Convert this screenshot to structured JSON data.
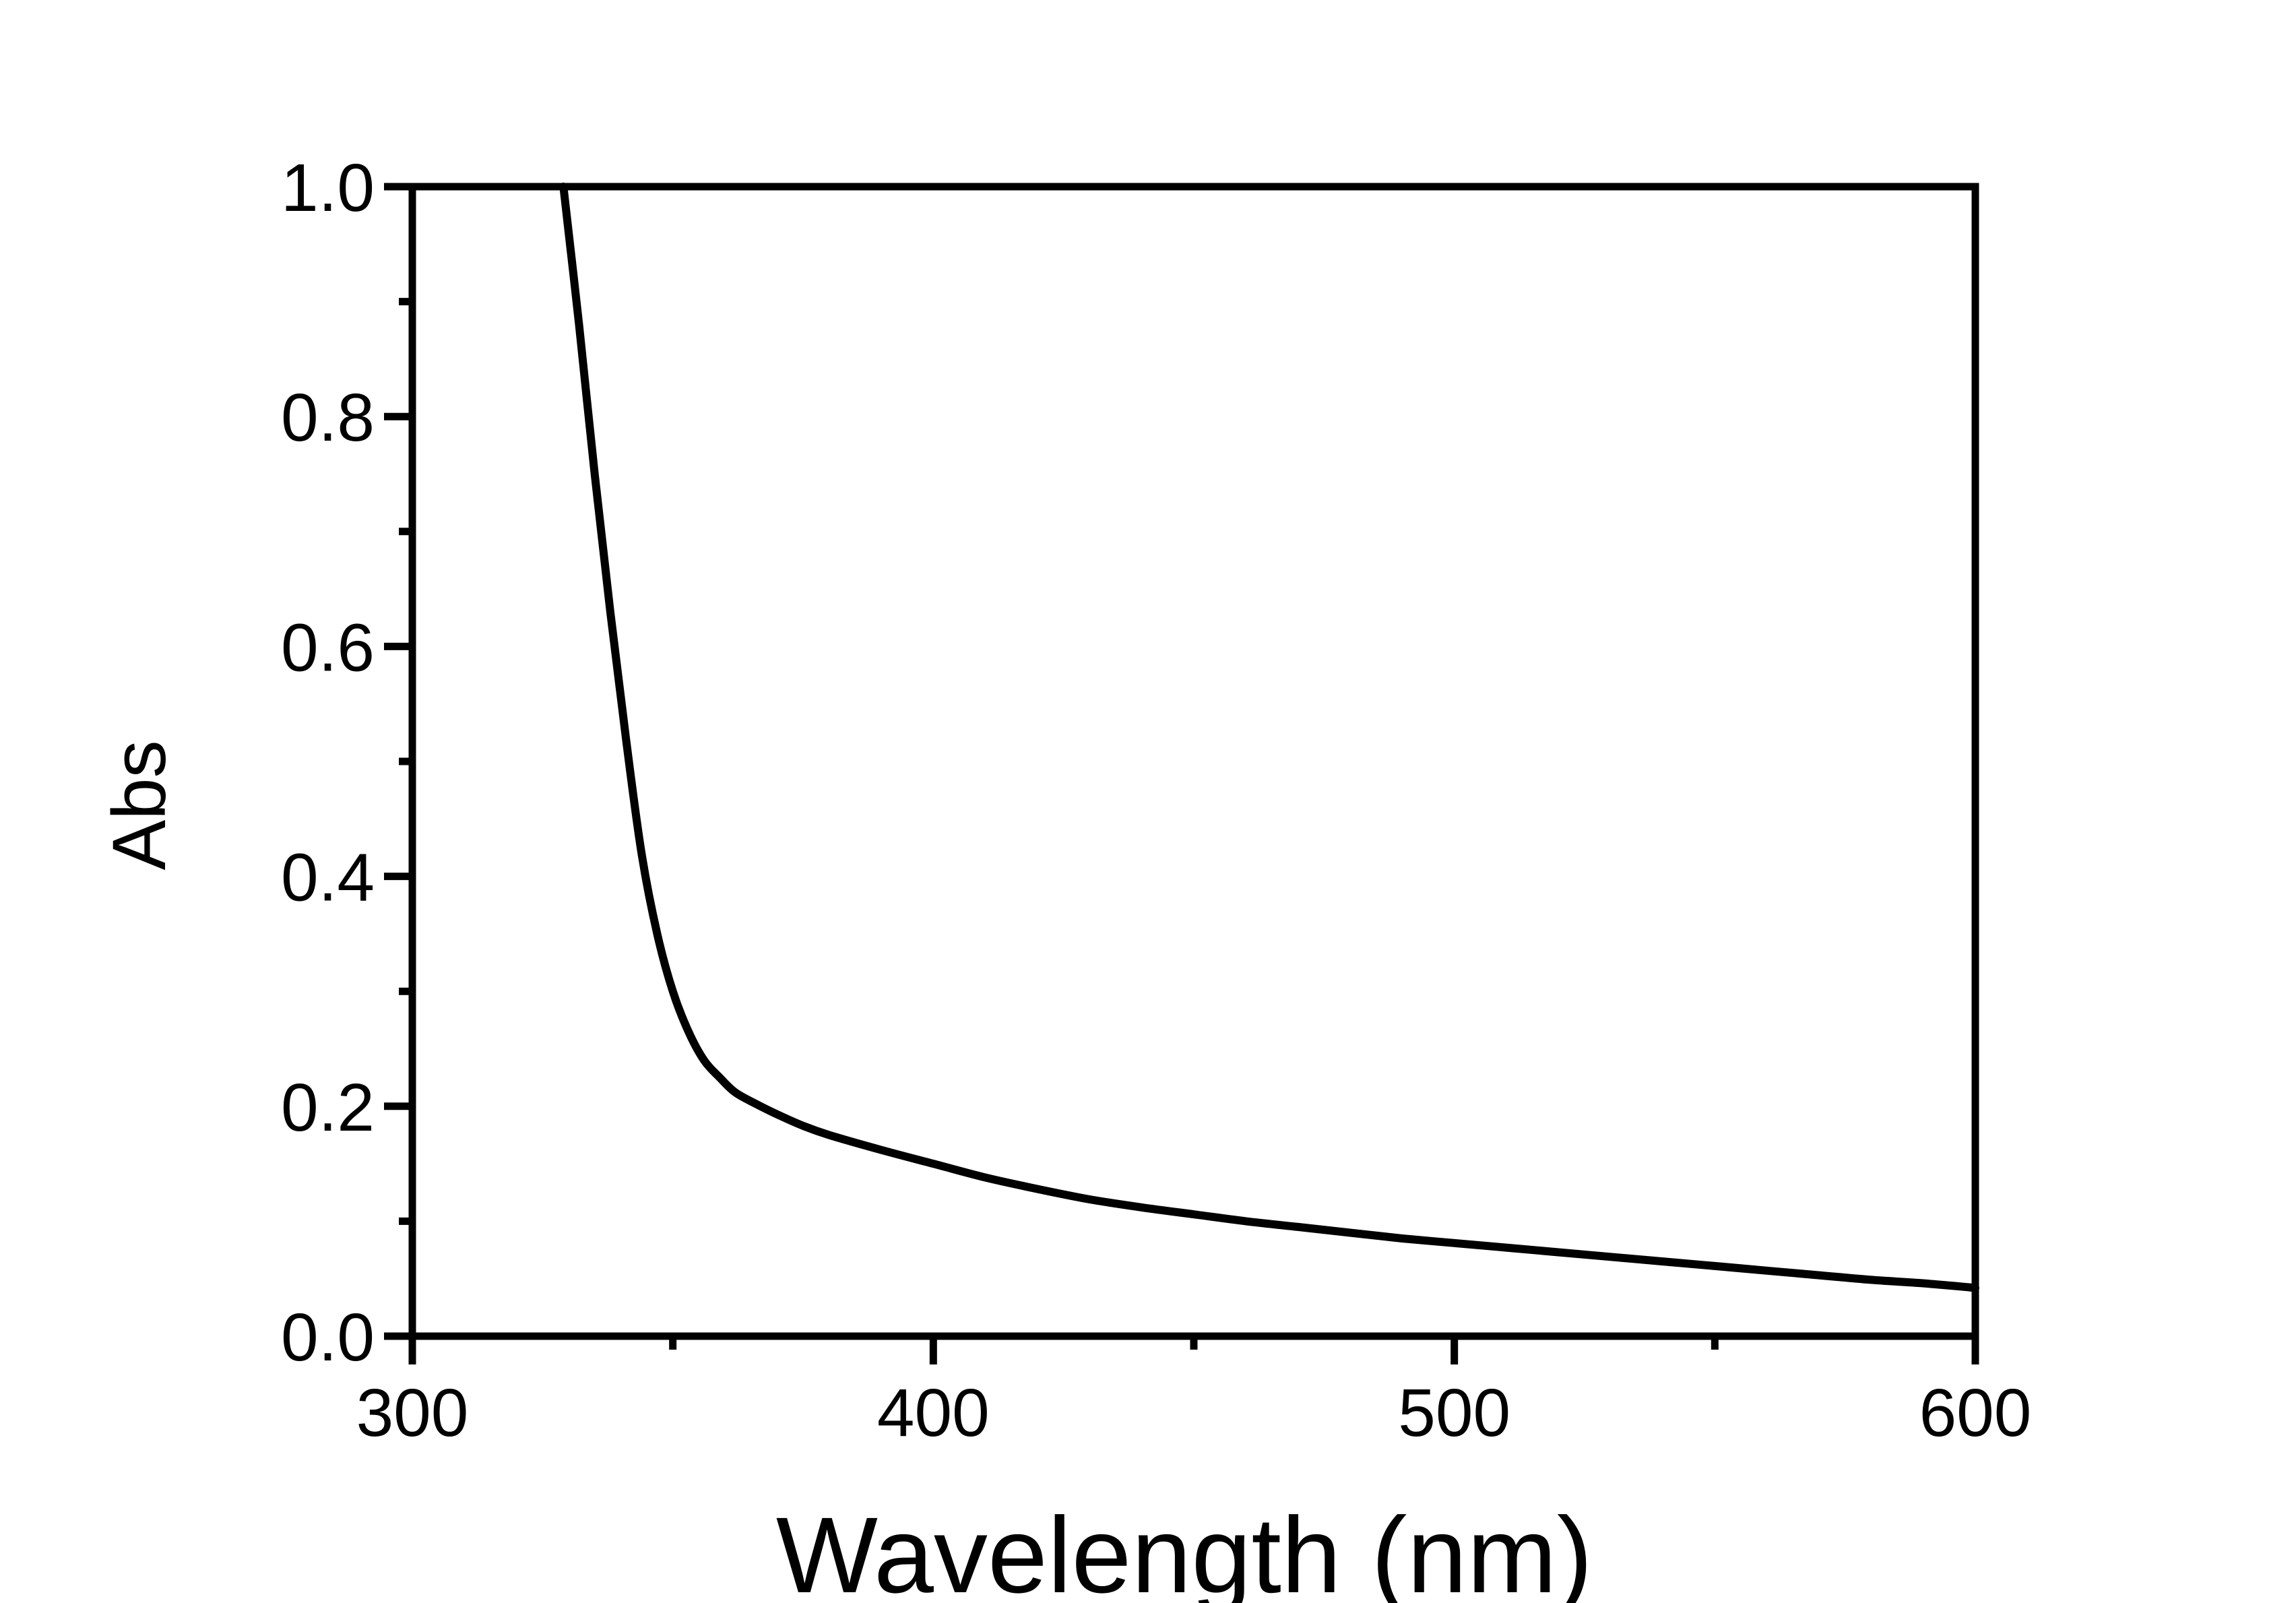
{
  "chart_data": {
    "type": "line",
    "title": "",
    "xlabel": "Wavelength (nm)",
    "ylabel": "Abs",
    "xlim": [
      300,
      600
    ],
    "ylim": [
      0.0,
      1.0
    ],
    "x_ticks": [
      300,
      400,
      500,
      600
    ],
    "x_tick_labels": [
      "300",
      "400",
      "500",
      "600"
    ],
    "x_minor_ticks": [
      350,
      450,
      550
    ],
    "y_ticks": [
      0.0,
      0.2,
      0.4,
      0.6,
      0.8,
      1.0
    ],
    "y_tick_labels": [
      "0.0",
      "0.2",
      "0.4",
      "0.6",
      "0.8",
      "1.0"
    ],
    "y_minor_ticks": [
      0.1,
      0.3,
      0.5,
      0.7,
      0.9
    ],
    "grid": false,
    "line_color": "#000000",
    "series": [
      {
        "x": [
          329,
          332,
          335,
          338,
          341,
          344,
          347,
          350,
          353,
          356,
          359,
          362,
          366,
          370,
          375,
          380,
          390,
          400,
          410,
          420,
          430,
          440,
          450,
          460,
          470,
          480,
          490,
          500,
          510,
          520,
          530,
          540,
          550,
          560,
          570,
          580,
          590,
          600
        ],
        "values": [
          1.0,
          0.88,
          0.75,
          0.63,
          0.52,
          0.42,
          0.35,
          0.3,
          0.265,
          0.24,
          0.225,
          0.212,
          0.202,
          0.193,
          0.183,
          0.175,
          0.162,
          0.15,
          0.138,
          0.128,
          0.119,
          0.112,
          0.106,
          0.1,
          0.095,
          0.09,
          0.085,
          0.081,
          0.077,
          0.073,
          0.069,
          0.065,
          0.061,
          0.057,
          0.053,
          0.049,
          0.046,
          0.042
        ]
      }
    ]
  }
}
